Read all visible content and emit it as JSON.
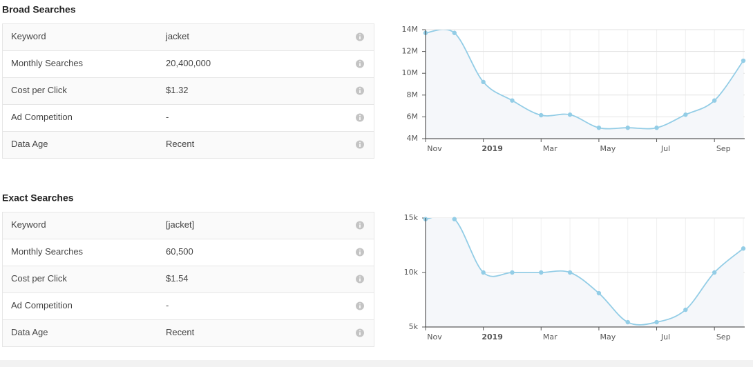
{
  "sections": [
    {
      "title": "Broad Searches",
      "rows": [
        [
          "Keyword",
          "jacket"
        ],
        [
          "Monthly Searches",
          "20,400,000"
        ],
        [
          "Cost per Click",
          "$1.32"
        ],
        [
          "Ad Competition",
          "-"
        ],
        [
          "Data Age",
          "Recent"
        ]
      ]
    },
    {
      "title": "Exact Searches",
      "rows": [
        [
          "Keyword",
          "[jacket]"
        ],
        [
          "Monthly Searches",
          "60,500"
        ],
        [
          "Cost per Click",
          "$1.54"
        ],
        [
          "Ad Competition",
          "-"
        ],
        [
          "Data Age",
          "Recent"
        ]
      ]
    }
  ],
  "chart_data": [
    {
      "type": "line",
      "categories": [
        "Nov",
        null,
        "2019",
        null,
        "Mar",
        null,
        "May",
        null,
        "Jul",
        null,
        "Sep",
        null
      ],
      "series": [
        {
          "color": "#93cde6",
          "values": [
            13700000,
            13700000,
            9200000,
            7500000,
            6150000,
            6200000,
            5000000,
            5000000,
            5000000,
            6200000,
            7500000,
            11150000
          ]
        }
      ],
      "ylim": [
        4000000,
        14000000
      ],
      "yticks": [
        {
          "value": 4000000,
          "label": "4M"
        },
        {
          "value": 6000000,
          "label": "6M"
        },
        {
          "value": 8000000,
          "label": "8M"
        },
        {
          "value": 10000000,
          "label": "10M"
        },
        {
          "value": 12000000,
          "label": "12M"
        },
        {
          "value": 14000000,
          "label": "14M"
        }
      ],
      "grid": true
    },
    {
      "type": "line",
      "categories": [
        "Nov",
        null,
        "2019",
        null,
        "Mar",
        null,
        "May",
        null,
        "Jul",
        null,
        "Sep",
        null
      ],
      "series": [
        {
          "color": "#93cde6",
          "values": [
            14900,
            14900,
            10000,
            10000,
            10000,
            10000,
            8100,
            5440,
            5440,
            6580,
            10000,
            12200
          ]
        }
      ],
      "ylim": [
        5000,
        15000
      ],
      "yticks": [
        {
          "value": 5000,
          "label": "5k"
        },
        {
          "value": 10000,
          "label": "10k"
        },
        {
          "value": 15000,
          "label": "15k"
        }
      ],
      "grid": true
    }
  ]
}
